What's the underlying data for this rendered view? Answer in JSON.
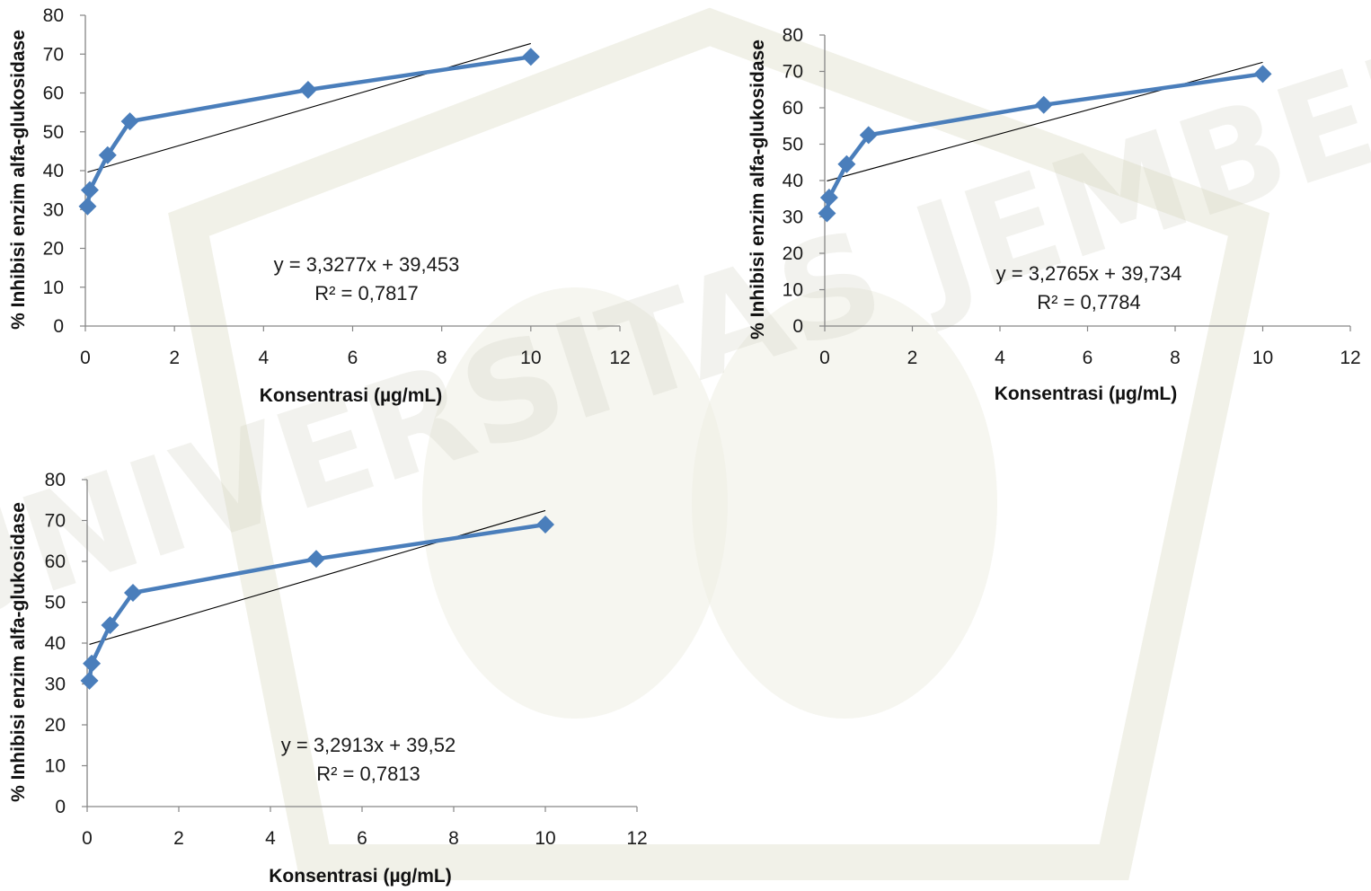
{
  "chart_data": [
    {
      "type": "line",
      "xlabel": "Konsentrasi  (µg/mL)",
      "ylabel": "% Inhibisi enzim alfa-glukosidase",
      "xlim": [
        0,
        12
      ],
      "ylim": [
        0,
        80
      ],
      "xticks": [
        "0",
        "2",
        "4",
        "6",
        "8",
        "10",
        "12"
      ],
      "yticks": [
        "0",
        "10",
        "20",
        "30",
        "40",
        "50",
        "60",
        "70",
        "80"
      ],
      "series": [
        {
          "x": [
            0.05,
            0.1,
            0.5,
            1,
            5,
            10
          ],
          "y": [
            30.8,
            35.0,
            44.0,
            52.7,
            60.8,
            69.3
          ]
        }
      ],
      "trendline": {
        "slope": 3.3277,
        "intercept": 39.453
      },
      "equation": "y = 3,3277x + 39,453",
      "r2": "R² = 0,7817",
      "colors": {
        "series": "#4a7ebb",
        "trend": "#000000"
      },
      "grid": false
    },
    {
      "type": "line",
      "xlabel": "Konsentrasi  (µg/mL)",
      "ylabel": "% Inhibisi enzim alfa-glukosidase",
      "xlim": [
        0,
        12
      ],
      "ylim": [
        0,
        80
      ],
      "xticks": [
        "0",
        "2",
        "4",
        "6",
        "8",
        "10",
        "12"
      ],
      "yticks": [
        "0",
        "10",
        "20",
        "30",
        "40",
        "50",
        "60",
        "70",
        "80"
      ],
      "series": [
        {
          "x": [
            0.05,
            0.1,
            0.5,
            1,
            5,
            10
          ],
          "y": [
            31.0,
            35.3,
            44.5,
            52.5,
            60.8,
            69.3
          ]
        }
      ],
      "trendline": {
        "slope": 3.2765,
        "intercept": 39.734
      },
      "equation": "y = 3,2765x + 39,734",
      "r2": "R² = 0,7784",
      "colors": {
        "series": "#4a7ebb",
        "trend": "#000000"
      },
      "grid": false
    },
    {
      "type": "line",
      "xlabel": "Konsentrasi  (µg/mL)",
      "ylabel": "% Inhibisi enzim alfa-glukosidase",
      "xlim": [
        0,
        12
      ],
      "ylim": [
        0,
        80
      ],
      "xticks": [
        "0",
        "2",
        "4",
        "6",
        "8",
        "10",
        "12"
      ],
      "yticks": [
        "0",
        "10",
        "20",
        "30",
        "40",
        "50",
        "60",
        "70",
        "80"
      ],
      "series": [
        {
          "x": [
            0.05,
            0.1,
            0.5,
            1,
            5,
            10
          ],
          "y": [
            30.8,
            35.0,
            44.4,
            52.3,
            60.6,
            69.0
          ]
        }
      ],
      "trendline": {
        "slope": 3.2913,
        "intercept": 39.52
      },
      "equation": "y = 3,2913x + 39,52",
      "r2": "R² = 0,7813",
      "colors": {
        "series": "#4a7ebb",
        "trend": "#000000"
      },
      "grid": false
    }
  ],
  "watermark": {
    "text": "UNIVERSITAS JEMBER",
    "color": "#c9c9b6"
  }
}
